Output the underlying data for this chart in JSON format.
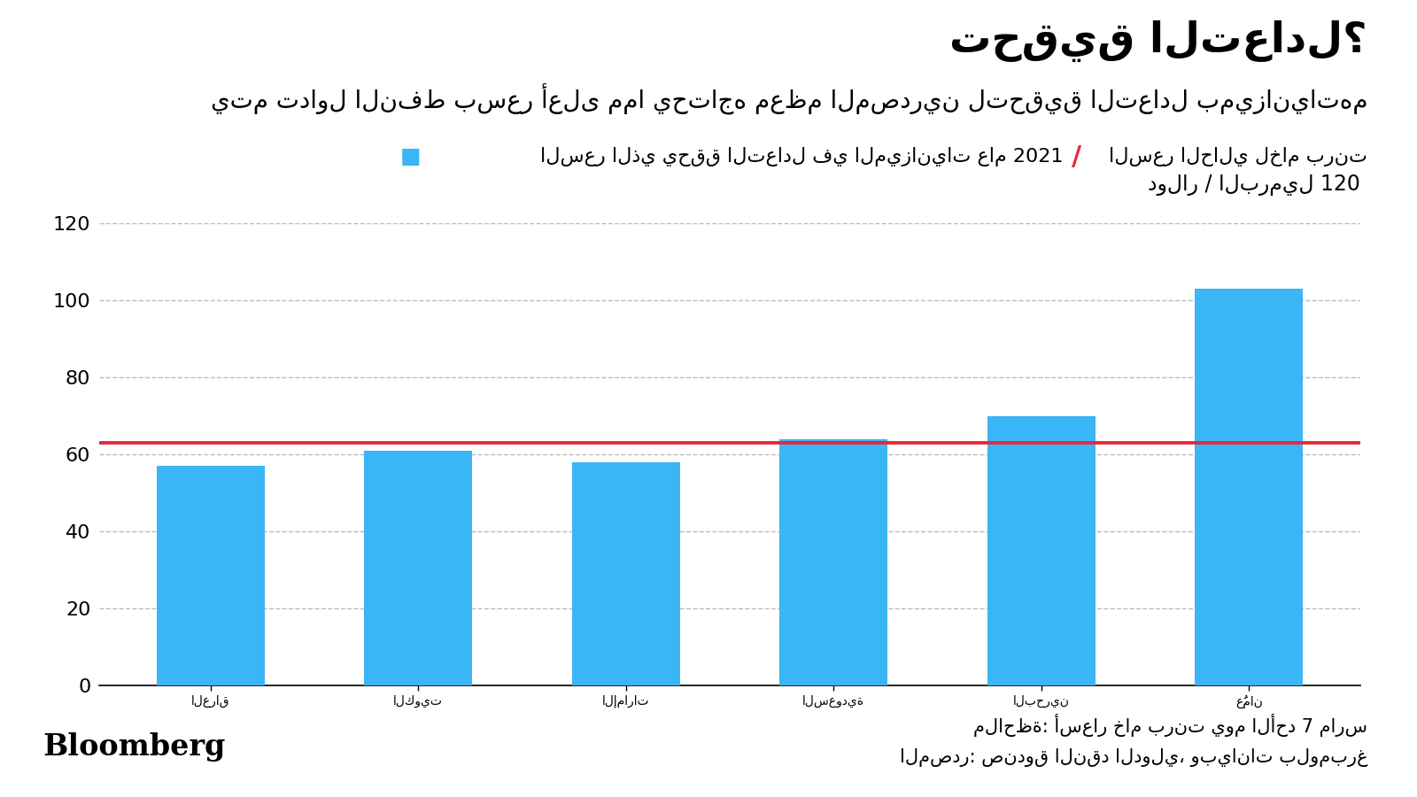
{
  "title": "تحقيق التعادل؟",
  "subtitle": "يتم تداول النفط بسعر أعلى مما يحتاجه معظم المصدرين لتحقيق التعادل بميزانياتهم",
  "legend_bar_label": "السعر الذي يحقق التعادل في الميزانيات عام 2021",
  "legend_line_label": "السعر الحالي لخام برنت",
  "ylabel": "دولار / البرميل 120",
  "categories_rtl": [
    "عُمان",
    "البحرين",
    "السعودية",
    "الإمارات",
    "الكويت",
    "العراق"
  ],
  "values_rtl": [
    103,
    70,
    64,
    58,
    61,
    57
  ],
  "bar_color": "#3ab5f5",
  "red_line_value": 63,
  "ylim": [
    0,
    120
  ],
  "yticks": [
    0,
    20,
    40,
    60,
    80,
    100,
    120
  ],
  "background_color": "#ffffff",
  "note_line1": "ملاحظة: أسعار خام برنت يوم الأحد 7 مارس",
  "note_line2": "المصدر: صندوق النقد الدولي، وبيانات بلومبرغ",
  "bloomberg_label": "Bloomberg"
}
